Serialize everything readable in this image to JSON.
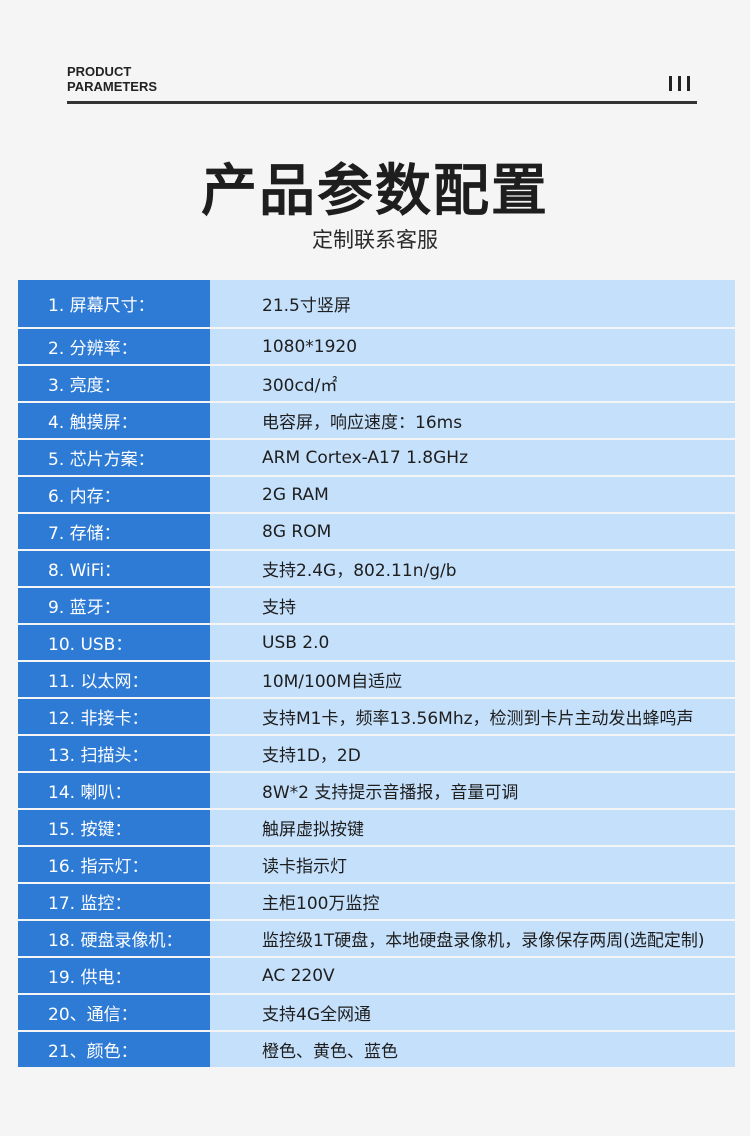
{
  "header": {
    "en_line1": "PRODUCT",
    "en_line2": "PARAMETERS",
    "icon": "three-bars-icon"
  },
  "title": "产品参数配置",
  "subtitle": "定制联系客服",
  "colors": {
    "label_bg": "#2e7bd6",
    "value_bg": "#c5e0fb",
    "page_bg": "#f5f5f5"
  },
  "specs": [
    {
      "label": "1. 屏幕尺寸：",
      "value": "21.5寸竖屏"
    },
    {
      "label": "2. 分辨率：",
      "value": "1080*1920"
    },
    {
      "label": "3. 亮度：",
      "value": "300cd/㎡"
    },
    {
      "label": "4. 触摸屏：",
      "value": "电容屏，响应速度：16ms"
    },
    {
      "label": "5. 芯片方案：",
      "value": "ARM Cortex-A17 1.8GHz"
    },
    {
      "label": "6. 内存：",
      "value": "2G RAM"
    },
    {
      "label": "7. 存储：",
      "value": "8G ROM"
    },
    {
      "label": "8. WiFi：",
      "value": "支持2.4G，802.11n/g/b"
    },
    {
      "label": "9. 蓝牙：",
      "value": "支持"
    },
    {
      "label": "10. USB：",
      "value": "USB 2.0"
    },
    {
      "label": "11. 以太网：",
      "value": "10M/100M自适应"
    },
    {
      "label": "12. 非接卡：",
      "value": "支持M1卡，频率13.56Mhz，检测到卡片主动发出蜂鸣声"
    },
    {
      "label": "13. 扫描头：",
      "value": "支持1D，2D"
    },
    {
      "label": "14. 喇叭：",
      "value": "8W*2 支持提示音播报，音量可调"
    },
    {
      "label": "15. 按键：",
      "value": "触屏虚拟按键"
    },
    {
      "label": "16. 指示灯：",
      "value": "读卡指示灯"
    },
    {
      "label": "17. 监控：",
      "value": "主柜100万监控"
    },
    {
      "label": "18. 硬盘录像机：",
      "value": "监控级1T硬盘，本地硬盘录像机，录像保存两周(选配定制)"
    },
    {
      "label": "19. 供电：",
      "value": "AC 220V"
    },
    {
      "label": "20、通信：",
      "value": "支持4G全网通"
    },
    {
      "label": "21、颜色：",
      "value": "橙色、黄色、蓝色"
    }
  ]
}
